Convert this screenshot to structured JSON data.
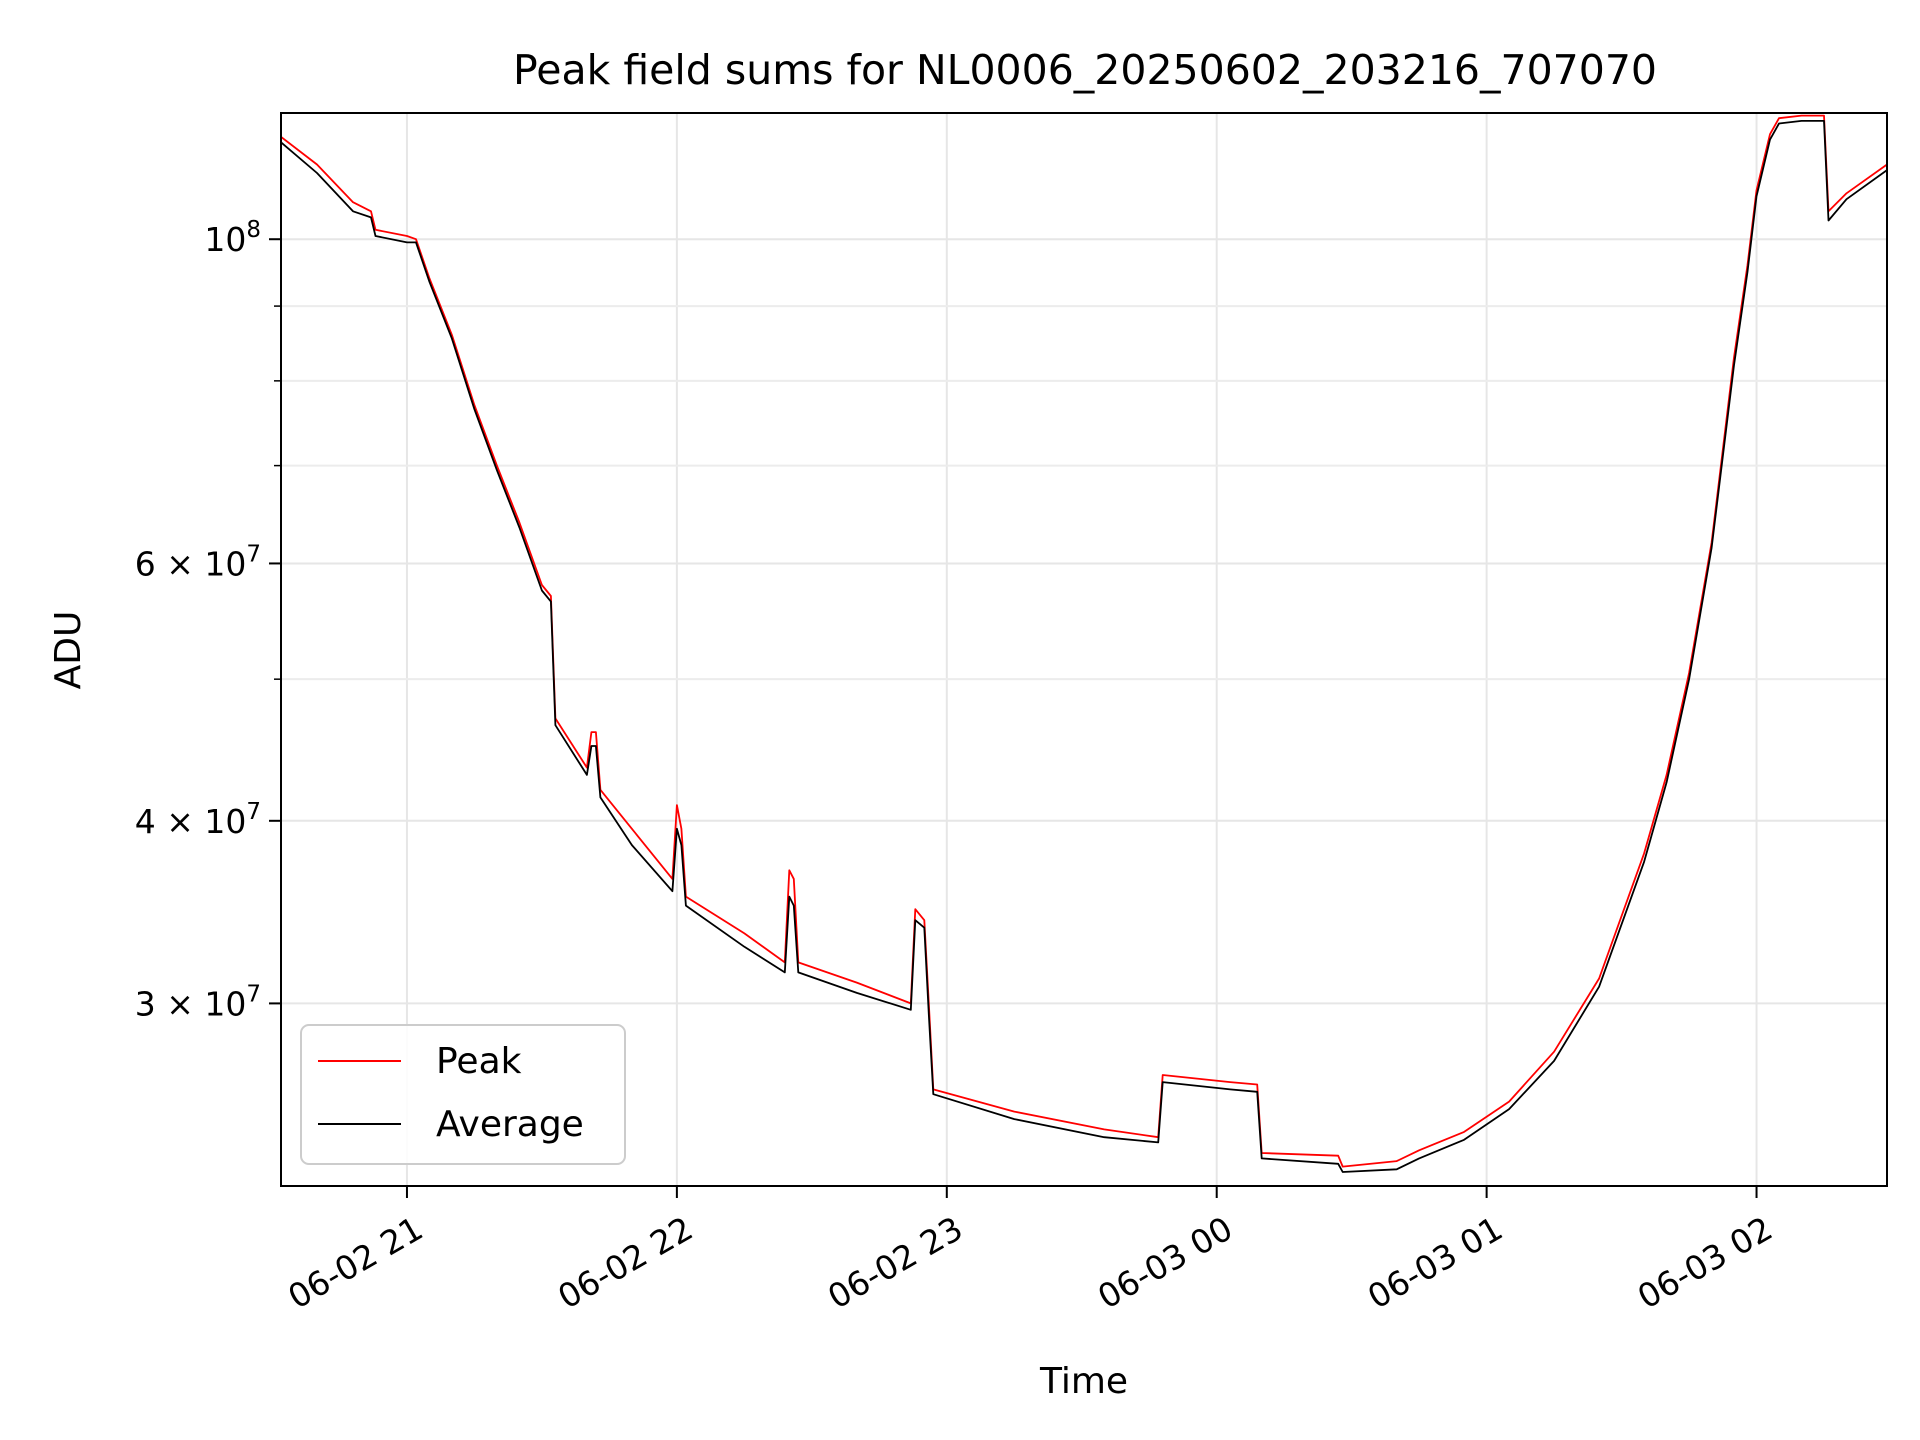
{
  "chart_data": {
    "type": "line",
    "title": "Peak field sums for NL0006_20250602_203216_707070",
    "xlabel": "Time",
    "ylabel": "ADU",
    "y_scale": "log",
    "grid": true,
    "legend_position": "lower-left",
    "x_range": [
      "2025-06-02 20:32",
      "2025-06-03 02:29"
    ],
    "y_range": [
      22500000,
      122000000
    ],
    "x_ticks": [
      {
        "t": "2025-06-02 21:00",
        "label": "06-02 21"
      },
      {
        "t": "2025-06-02 22:00",
        "label": "06-02 22"
      },
      {
        "t": "2025-06-02 23:00",
        "label": "06-02 23"
      },
      {
        "t": "2025-06-03 00:00",
        "label": "06-03 00"
      },
      {
        "t": "2025-06-03 01:00",
        "label": "06-03 01"
      },
      {
        "t": "2025-06-03 02:00",
        "label": "06-03 02"
      }
    ],
    "y_ticks": [
      {
        "value": 100000000,
        "base": "10",
        "exp": "8"
      },
      {
        "value": 60000000,
        "coef": "6",
        "base": "10",
        "exp": "7"
      },
      {
        "value": 40000000,
        "coef": "4",
        "base": "10",
        "exp": "7"
      },
      {
        "value": 30000000,
        "coef": "3",
        "base": "10",
        "exp": "7"
      }
    ],
    "y_minor_ticks": [
      90000000,
      80000000,
      70000000,
      50000000
    ],
    "series": [
      {
        "name": "Peak",
        "color": "#ff0000",
        "points": [
          [
            "2025-06-02 20:32",
            117500000
          ],
          [
            "2025-06-02 20:40",
            112500000
          ],
          [
            "2025-06-02 20:48",
            106000000
          ],
          [
            "2025-06-02 20:52",
            104500000
          ],
          [
            "2025-06-02 20:53",
            101500000
          ],
          [
            "2025-06-02 21:00",
            100500000
          ],
          [
            "2025-06-02 21:02",
            100000000
          ],
          [
            "2025-06-02 21:05",
            94000000
          ],
          [
            "2025-06-02 21:10",
            86000000
          ],
          [
            "2025-06-02 21:15",
            77000000
          ],
          [
            "2025-06-02 21:20",
            70000000
          ],
          [
            "2025-06-02 21:25",
            64000000
          ],
          [
            "2025-06-02 21:30",
            58000000
          ],
          [
            "2025-06-02 21:32",
            57000000
          ],
          [
            "2025-06-02 21:33",
            47000000
          ],
          [
            "2025-06-02 21:40",
            43500000
          ],
          [
            "2025-06-02 21:41",
            46000000
          ],
          [
            "2025-06-02 21:42",
            46000000
          ],
          [
            "2025-06-02 21:43",
            42000000
          ],
          [
            "2025-06-02 21:50",
            39500000
          ],
          [
            "2025-06-02 21:59",
            36500000
          ],
          [
            "2025-06-02 22:00",
            41000000
          ],
          [
            "2025-06-02 22:01",
            39500000
          ],
          [
            "2025-06-02 22:02",
            35500000
          ],
          [
            "2025-06-02 22:15",
            33500000
          ],
          [
            "2025-06-02 22:24",
            32000000
          ],
          [
            "2025-06-02 22:25",
            37000000
          ],
          [
            "2025-06-02 22:26",
            36500000
          ],
          [
            "2025-06-02 22:27",
            32000000
          ],
          [
            "2025-06-02 22:40",
            31000000
          ],
          [
            "2025-06-02 22:52",
            30000000
          ],
          [
            "2025-06-02 22:53",
            34800000
          ],
          [
            "2025-06-02 22:55",
            34200000
          ],
          [
            "2025-06-02 22:56",
            30000000
          ],
          [
            "2025-06-02 22:57",
            26200000
          ],
          [
            "2025-06-02 23:15",
            25300000
          ],
          [
            "2025-06-02 23:35",
            24600000
          ],
          [
            "2025-06-02 23:47",
            24300000
          ],
          [
            "2025-06-02 23:48",
            26800000
          ],
          [
            "2025-06-03 00:03",
            26500000
          ],
          [
            "2025-06-03 00:09",
            26400000
          ],
          [
            "2025-06-03 00:10",
            23700000
          ],
          [
            "2025-06-03 00:27",
            23600000
          ],
          [
            "2025-06-03 00:28",
            23200000
          ],
          [
            "2025-06-03 00:40",
            23400000
          ],
          [
            "2025-06-03 00:45",
            23800000
          ],
          [
            "2025-06-03 00:55",
            24500000
          ],
          [
            "2025-06-03 01:05",
            25700000
          ],
          [
            "2025-06-03 01:15",
            27800000
          ],
          [
            "2025-06-03 01:25",
            31200000
          ],
          [
            "2025-06-03 01:35",
            38000000
          ],
          [
            "2025-06-03 01:40",
            43000000
          ],
          [
            "2025-06-03 01:45",
            50500000
          ],
          [
            "2025-06-03 01:50",
            62000000
          ],
          [
            "2025-06-03 01:55",
            83000000
          ],
          [
            "2025-06-03 01:58",
            96000000
          ],
          [
            "2025-06-03 02:00",
            108000000
          ],
          [
            "2025-06-03 02:03",
            118000000
          ],
          [
            "2025-06-03 02:05",
            121000000
          ],
          [
            "2025-06-03 02:10",
            121500000
          ],
          [
            "2025-06-03 02:15",
            121500000
          ],
          [
            "2025-06-03 02:16",
            104500000
          ],
          [
            "2025-06-03 02:20",
            107500000
          ],
          [
            "2025-06-03 02:29",
            112500000
          ]
        ]
      },
      {
        "name": "Average",
        "color": "#000000",
        "points": [
          [
            "2025-06-02 20:32",
            116500000
          ],
          [
            "2025-06-02 20:40",
            111000000
          ],
          [
            "2025-06-02 20:48",
            104500000
          ],
          [
            "2025-06-02 20:52",
            103500000
          ],
          [
            "2025-06-02 20:53",
            100500000
          ],
          [
            "2025-06-02 21:00",
            99500000
          ],
          [
            "2025-06-02 21:02",
            99500000
          ],
          [
            "2025-06-02 21:05",
            93500000
          ],
          [
            "2025-06-02 21:10",
            85500000
          ],
          [
            "2025-06-02 21:15",
            76500000
          ],
          [
            "2025-06-02 21:20",
            69500000
          ],
          [
            "2025-06-02 21:25",
            63500000
          ],
          [
            "2025-06-02 21:30",
            57500000
          ],
          [
            "2025-06-02 21:32",
            56500000
          ],
          [
            "2025-06-02 21:33",
            46500000
          ],
          [
            "2025-06-02 21:40",
            43000000
          ],
          [
            "2025-06-02 21:41",
            45000000
          ],
          [
            "2025-06-02 21:42",
            45000000
          ],
          [
            "2025-06-02 21:43",
            41500000
          ],
          [
            "2025-06-02 21:50",
            38500000
          ],
          [
            "2025-06-02 21:59",
            35800000
          ],
          [
            "2025-06-02 22:00",
            39500000
          ],
          [
            "2025-06-02 22:01",
            38500000
          ],
          [
            "2025-06-02 22:02",
            35000000
          ],
          [
            "2025-06-02 22:15",
            32800000
          ],
          [
            "2025-06-02 22:24",
            31500000
          ],
          [
            "2025-06-02 22:25",
            35500000
          ],
          [
            "2025-06-02 22:26",
            35000000
          ],
          [
            "2025-06-02 22:27",
            31500000
          ],
          [
            "2025-06-02 22:40",
            30500000
          ],
          [
            "2025-06-02 22:52",
            29700000
          ],
          [
            "2025-06-02 22:53",
            34200000
          ],
          [
            "2025-06-02 22:55",
            33800000
          ],
          [
            "2025-06-02 22:56",
            29500000
          ],
          [
            "2025-06-02 22:57",
            26000000
          ],
          [
            "2025-06-02 23:15",
            25000000
          ],
          [
            "2025-06-02 23:35",
            24300000
          ],
          [
            "2025-06-02 23:47",
            24100000
          ],
          [
            "2025-06-02 23:48",
            26500000
          ],
          [
            "2025-06-03 00:03",
            26200000
          ],
          [
            "2025-06-03 00:09",
            26100000
          ],
          [
            "2025-06-03 00:10",
            23500000
          ],
          [
            "2025-06-03 00:27",
            23300000
          ],
          [
            "2025-06-03 00:28",
            23000000
          ],
          [
            "2025-06-03 00:40",
            23100000
          ],
          [
            "2025-06-03 00:45",
            23500000
          ],
          [
            "2025-06-03 00:55",
            24200000
          ],
          [
            "2025-06-03 01:05",
            25400000
          ],
          [
            "2025-06-03 01:15",
            27400000
          ],
          [
            "2025-06-03 01:25",
            30800000
          ],
          [
            "2025-06-03 01:35",
            37500000
          ],
          [
            "2025-06-03 01:40",
            42500000
          ],
          [
            "2025-06-03 01:45",
            50000000
          ],
          [
            "2025-06-03 01:50",
            61500000
          ],
          [
            "2025-06-03 01:55",
            82000000
          ],
          [
            "2025-06-03 01:58",
            95000000
          ],
          [
            "2025-06-03 02:00",
            107000000
          ],
          [
            "2025-06-03 02:03",
            117000000
          ],
          [
            "2025-06-03 02:05",
            120000000
          ],
          [
            "2025-06-03 02:10",
            120500000
          ],
          [
            "2025-06-03 02:15",
            120500000
          ],
          [
            "2025-06-03 02:16",
            103000000
          ],
          [
            "2025-06-03 02:20",
            106500000
          ],
          [
            "2025-06-03 02:29",
            111500000
          ]
        ]
      }
    ]
  }
}
